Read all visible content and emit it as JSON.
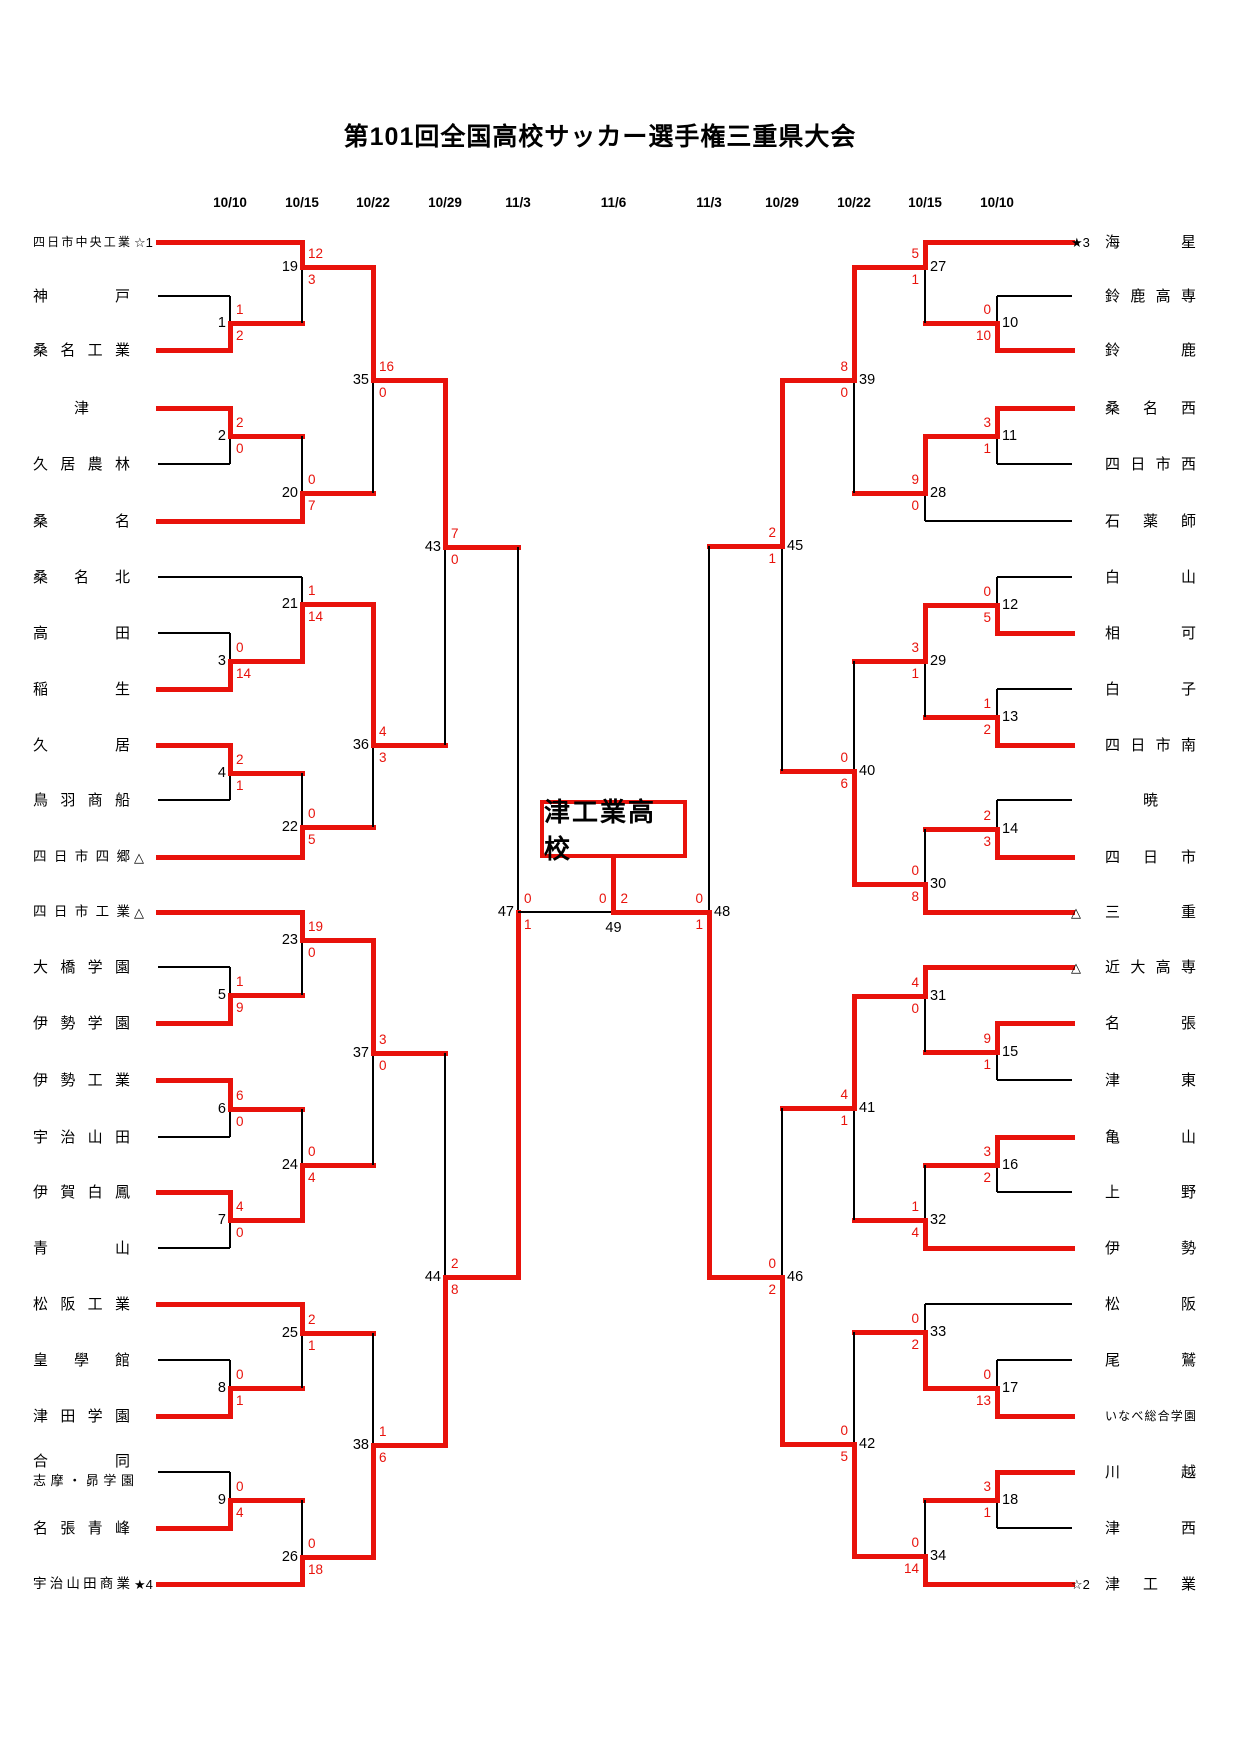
{
  "title": "第101回全国高校サッカー選手権三重県大会",
  "champion_label": "津工業高校",
  "round_dates": [
    "10/10",
    "10/15",
    "10/22",
    "10/29",
    "11/3",
    "11/6",
    "11/3",
    "10/29",
    "10/22",
    "10/15",
    "10/10"
  ],
  "colors": {
    "winner_path": "#e8120b",
    "line": "#000000",
    "score": "#e8120b"
  },
  "teams": {
    "left": [
      {
        "name": "四日市中央工業",
        "seed": "☆1"
      },
      {
        "name": "神戸"
      },
      {
        "name": "桑名工業"
      },
      {
        "name": "津"
      },
      {
        "name": "久居農林"
      },
      {
        "name": "桑名"
      },
      {
        "name": "桑名北"
      },
      {
        "name": "高田"
      },
      {
        "name": "稲生"
      },
      {
        "name": "久居"
      },
      {
        "name": "鳥羽商船"
      },
      {
        "name": "四日市四郷",
        "seed": "△"
      },
      {
        "name": "四日市工業",
        "seed": "△"
      },
      {
        "name": "大橋学園"
      },
      {
        "name": "伊勢学園"
      },
      {
        "name": "伊勢工業"
      },
      {
        "name": "宇治山田"
      },
      {
        "name": "伊賀白鳳"
      },
      {
        "name": "青山"
      },
      {
        "name": "松阪工業"
      },
      {
        "name": "皇學館"
      },
      {
        "name": "津田学園"
      },
      {
        "name": "合同",
        "name2": "志摩・昴学園"
      },
      {
        "name": "名張青峰"
      },
      {
        "name": "宇治山田商業",
        "seed": "★4"
      }
    ],
    "right": [
      {
        "name": "海星",
        "seed": "★3"
      },
      {
        "name": "鈴鹿高専"
      },
      {
        "name": "鈴鹿"
      },
      {
        "name": "桑名西"
      },
      {
        "name": "四日市西"
      },
      {
        "name": "石薬師"
      },
      {
        "name": "白山"
      },
      {
        "name": "相可"
      },
      {
        "name": "白子"
      },
      {
        "name": "四日市南"
      },
      {
        "name": "暁"
      },
      {
        "name": "四日市"
      },
      {
        "name": "三重",
        "seed": "△"
      },
      {
        "name": "近大高専",
        "seed": "△"
      },
      {
        "name": "名張"
      },
      {
        "name": "津東"
      },
      {
        "name": "亀山"
      },
      {
        "name": "上野"
      },
      {
        "name": "伊勢"
      },
      {
        "name": "松阪"
      },
      {
        "name": "尾鷲"
      },
      {
        "name": "いなべ総合学園"
      },
      {
        "name": "川越"
      },
      {
        "name": "津西"
      },
      {
        "name": "津工業",
        "seed": "☆2"
      }
    ]
  },
  "matches": [
    {
      "no": 1,
      "side": "left",
      "top": {
        "team": 1
      },
      "bottom": {
        "team": 2
      },
      "score": [
        "1",
        "2"
      ],
      "winner": "bottom"
    },
    {
      "no": 2,
      "side": "left",
      "top": {
        "team": 3
      },
      "bottom": {
        "team": 4
      },
      "score": [
        "2",
        "0"
      ],
      "winner": "top"
    },
    {
      "no": 3,
      "side": "left",
      "top": {
        "team": 7
      },
      "bottom": {
        "team": 8
      },
      "score": [
        "0",
        "14"
      ],
      "winner": "bottom"
    },
    {
      "no": 4,
      "side": "left",
      "top": {
        "team": 9
      },
      "bottom": {
        "team": 10
      },
      "score": [
        "2",
        "1"
      ],
      "winner": "top"
    },
    {
      "no": 5,
      "side": "left",
      "top": {
        "team": 13
      },
      "bottom": {
        "team": 14
      },
      "score": [
        "1",
        "9"
      ],
      "winner": "bottom"
    },
    {
      "no": 6,
      "side": "left",
      "top": {
        "team": 15
      },
      "bottom": {
        "team": 16
      },
      "score": [
        "6",
        "0"
      ],
      "winner": "top"
    },
    {
      "no": 7,
      "side": "left",
      "top": {
        "team": 17
      },
      "bottom": {
        "team": 18
      },
      "score": [
        "4",
        "0"
      ],
      "winner": "top"
    },
    {
      "no": 8,
      "side": "left",
      "top": {
        "team": 20
      },
      "bottom": {
        "team": 21
      },
      "score": [
        "0",
        "1"
      ],
      "winner": "bottom"
    },
    {
      "no": 9,
      "side": "left",
      "top": {
        "team": 22
      },
      "bottom": {
        "team": 23
      },
      "score": [
        "0",
        "4"
      ],
      "winner": "bottom"
    },
    {
      "no": 10,
      "side": "right",
      "top": {
        "team": 1
      },
      "bottom": {
        "team": 2
      },
      "score": [
        "0",
        "10"
      ],
      "winner": "bottom"
    },
    {
      "no": 11,
      "side": "right",
      "top": {
        "team": 3
      },
      "bottom": {
        "team": 4
      },
      "score": [
        "3",
        "1"
      ],
      "winner": "top"
    },
    {
      "no": 12,
      "side": "right",
      "top": {
        "team": 6
      },
      "bottom": {
        "team": 7
      },
      "score": [
        "0",
        "5"
      ],
      "winner": "bottom"
    },
    {
      "no": 13,
      "side": "right",
      "top": {
        "team": 8
      },
      "bottom": {
        "team": 9
      },
      "score": [
        "1",
        "2"
      ],
      "winner": "bottom"
    },
    {
      "no": 14,
      "side": "right",
      "top": {
        "team": 10
      },
      "bottom": {
        "team": 11
      },
      "score": [
        "2",
        "3"
      ],
      "winner": "bottom"
    },
    {
      "no": 15,
      "side": "right",
      "top": {
        "team": 14
      },
      "bottom": {
        "team": 15
      },
      "score": [
        "9",
        "1"
      ],
      "winner": "top"
    },
    {
      "no": 16,
      "side": "right",
      "top": {
        "team": 16
      },
      "bottom": {
        "team": 17
      },
      "score": [
        "3",
        "2"
      ],
      "winner": "top"
    },
    {
      "no": 17,
      "side": "right",
      "top": {
        "team": 20
      },
      "bottom": {
        "team": 21
      },
      "score": [
        "0",
        "13"
      ],
      "winner": "bottom"
    },
    {
      "no": 18,
      "side": "right",
      "top": {
        "team": 22
      },
      "bottom": {
        "team": 23
      },
      "score": [
        "3",
        "1"
      ],
      "winner": "top"
    },
    {
      "no": 19,
      "side": "left",
      "top": {
        "team": 0
      },
      "bottom": {
        "match": 1
      },
      "score": [
        "12",
        "3"
      ],
      "winner": "top"
    },
    {
      "no": 20,
      "side": "left",
      "top": {
        "match": 2
      },
      "bottom": {
        "team": 5
      },
      "score": [
        "0",
        "7"
      ],
      "winner": "bottom"
    },
    {
      "no": 21,
      "side": "left",
      "top": {
        "team": 6
      },
      "bottom": {
        "match": 3
      },
      "score": [
        "1",
        "14"
      ],
      "winner": "bottom"
    },
    {
      "no": 22,
      "side": "left",
      "top": {
        "match": 4
      },
      "bottom": {
        "team": 11
      },
      "score": [
        "0",
        "5"
      ],
      "winner": "bottom"
    },
    {
      "no": 23,
      "side": "left",
      "top": {
        "team": 12
      },
      "bottom": {
        "match": 5
      },
      "score": [
        "19",
        "0"
      ],
      "winner": "top"
    },
    {
      "no": 24,
      "side": "left",
      "top": {
        "match": 6
      },
      "bottom": {
        "match": 7
      },
      "score": [
        "0",
        "4"
      ],
      "winner": "bottom"
    },
    {
      "no": 25,
      "side": "left",
      "top": {
        "team": 19
      },
      "bottom": {
        "match": 8
      },
      "score": [
        "2",
        "1"
      ],
      "winner": "top"
    },
    {
      "no": 26,
      "side": "left",
      "top": {
        "match": 9
      },
      "bottom": {
        "team": 24
      },
      "score": [
        "0",
        "18"
      ],
      "winner": "bottom"
    },
    {
      "no": 27,
      "side": "right",
      "top": {
        "team": 0
      },
      "bottom": {
        "match": 10
      },
      "score": [
        "5",
        "1"
      ],
      "winner": "top"
    },
    {
      "no": 28,
      "side": "right",
      "top": {
        "match": 11
      },
      "bottom": {
        "team": 5
      },
      "score": [
        "9",
        "0"
      ],
      "winner": "top"
    },
    {
      "no": 29,
      "side": "right",
      "top": {
        "match": 12
      },
      "bottom": {
        "match": 13
      },
      "score": [
        "3",
        "1"
      ],
      "winner": "top"
    },
    {
      "no": 30,
      "side": "right",
      "top": {
        "match": 14
      },
      "bottom": {
        "team": 12
      },
      "score": [
        "0",
        "8"
      ],
      "winner": "bottom"
    },
    {
      "no": 31,
      "side": "right",
      "top": {
        "team": 13
      },
      "bottom": {
        "match": 15
      },
      "score": [
        "4",
        "0"
      ],
      "winner": "top"
    },
    {
      "no": 32,
      "side": "right",
      "top": {
        "match": 16
      },
      "bottom": {
        "team": 18
      },
      "score": [
        "1",
        "4"
      ],
      "winner": "bottom"
    },
    {
      "no": 33,
      "side": "right",
      "top": {
        "team": 19
      },
      "bottom": {
        "match": 17
      },
      "score": [
        "0",
        "2"
      ],
      "winner": "bottom"
    },
    {
      "no": 34,
      "side": "right",
      "top": {
        "match": 18
      },
      "bottom": {
        "team": 24
      },
      "score": [
        "0",
        "14"
      ],
      "winner": "bottom"
    },
    {
      "no": 35,
      "side": "left",
      "top": {
        "match": 19
      },
      "bottom": {
        "match": 20
      },
      "score": [
        "16",
        "0"
      ],
      "winner": "top"
    },
    {
      "no": 36,
      "side": "left",
      "top": {
        "match": 21
      },
      "bottom": {
        "match": 22
      },
      "score": [
        "4",
        "3"
      ],
      "winner": "top"
    },
    {
      "no": 37,
      "side": "left",
      "top": {
        "match": 23
      },
      "bottom": {
        "match": 24
      },
      "score": [
        "3",
        "0"
      ],
      "winner": "top"
    },
    {
      "no": 38,
      "side": "left",
      "top": {
        "match": 25
      },
      "bottom": {
        "match": 26
      },
      "score": [
        "1",
        "6"
      ],
      "winner": "bottom"
    },
    {
      "no": 39,
      "side": "right",
      "top": {
        "match": 27
      },
      "bottom": {
        "match": 28
      },
      "score": [
        "8",
        "0"
      ],
      "winner": "top"
    },
    {
      "no": 40,
      "side": "right",
      "top": {
        "match": 29
      },
      "bottom": {
        "match": 30
      },
      "score": [
        "0",
        "6"
      ],
      "winner": "bottom"
    },
    {
      "no": 41,
      "side": "right",
      "top": {
        "match": 31
      },
      "bottom": {
        "match": 32
      },
      "score": [
        "4",
        "1"
      ],
      "winner": "top"
    },
    {
      "no": 42,
      "side": "right",
      "top": {
        "match": 33
      },
      "bottom": {
        "match": 34
      },
      "score": [
        "0",
        "5"
      ],
      "winner": "bottom"
    },
    {
      "no": 43,
      "side": "left",
      "top": {
        "match": 35
      },
      "bottom": {
        "match": 36
      },
      "score": [
        "7",
        "0"
      ],
      "winner": "top"
    },
    {
      "no": 44,
      "side": "left",
      "top": {
        "match": 37
      },
      "bottom": {
        "match": 38
      },
      "score": [
        "2",
        "8"
      ],
      "winner": "bottom"
    },
    {
      "no": 45,
      "side": "right",
      "top": {
        "match": 39
      },
      "bottom": {
        "match": 40
      },
      "score": [
        "2",
        "1"
      ],
      "winner": "top"
    },
    {
      "no": 46,
      "side": "right",
      "top": {
        "match": 41
      },
      "bottom": {
        "match": 42
      },
      "score": [
        "0",
        "2"
      ],
      "winner": "bottom"
    },
    {
      "no": 47,
      "side": "left",
      "top": {
        "match": 43
      },
      "bottom": {
        "match": 44
      },
      "score": [
        "0",
        "1"
      ],
      "winner": "bottom"
    },
    {
      "no": 48,
      "side": "right",
      "top": {
        "match": 45
      },
      "bottom": {
        "match": 46
      },
      "score": [
        "0",
        "1"
      ],
      "winner": "bottom"
    },
    {
      "no": 49,
      "side": "final",
      "top": {
        "match": 47
      },
      "bottom": {
        "match": 48
      },
      "score": [
        "0",
        "2"
      ],
      "winner": "bottom"
    }
  ]
}
